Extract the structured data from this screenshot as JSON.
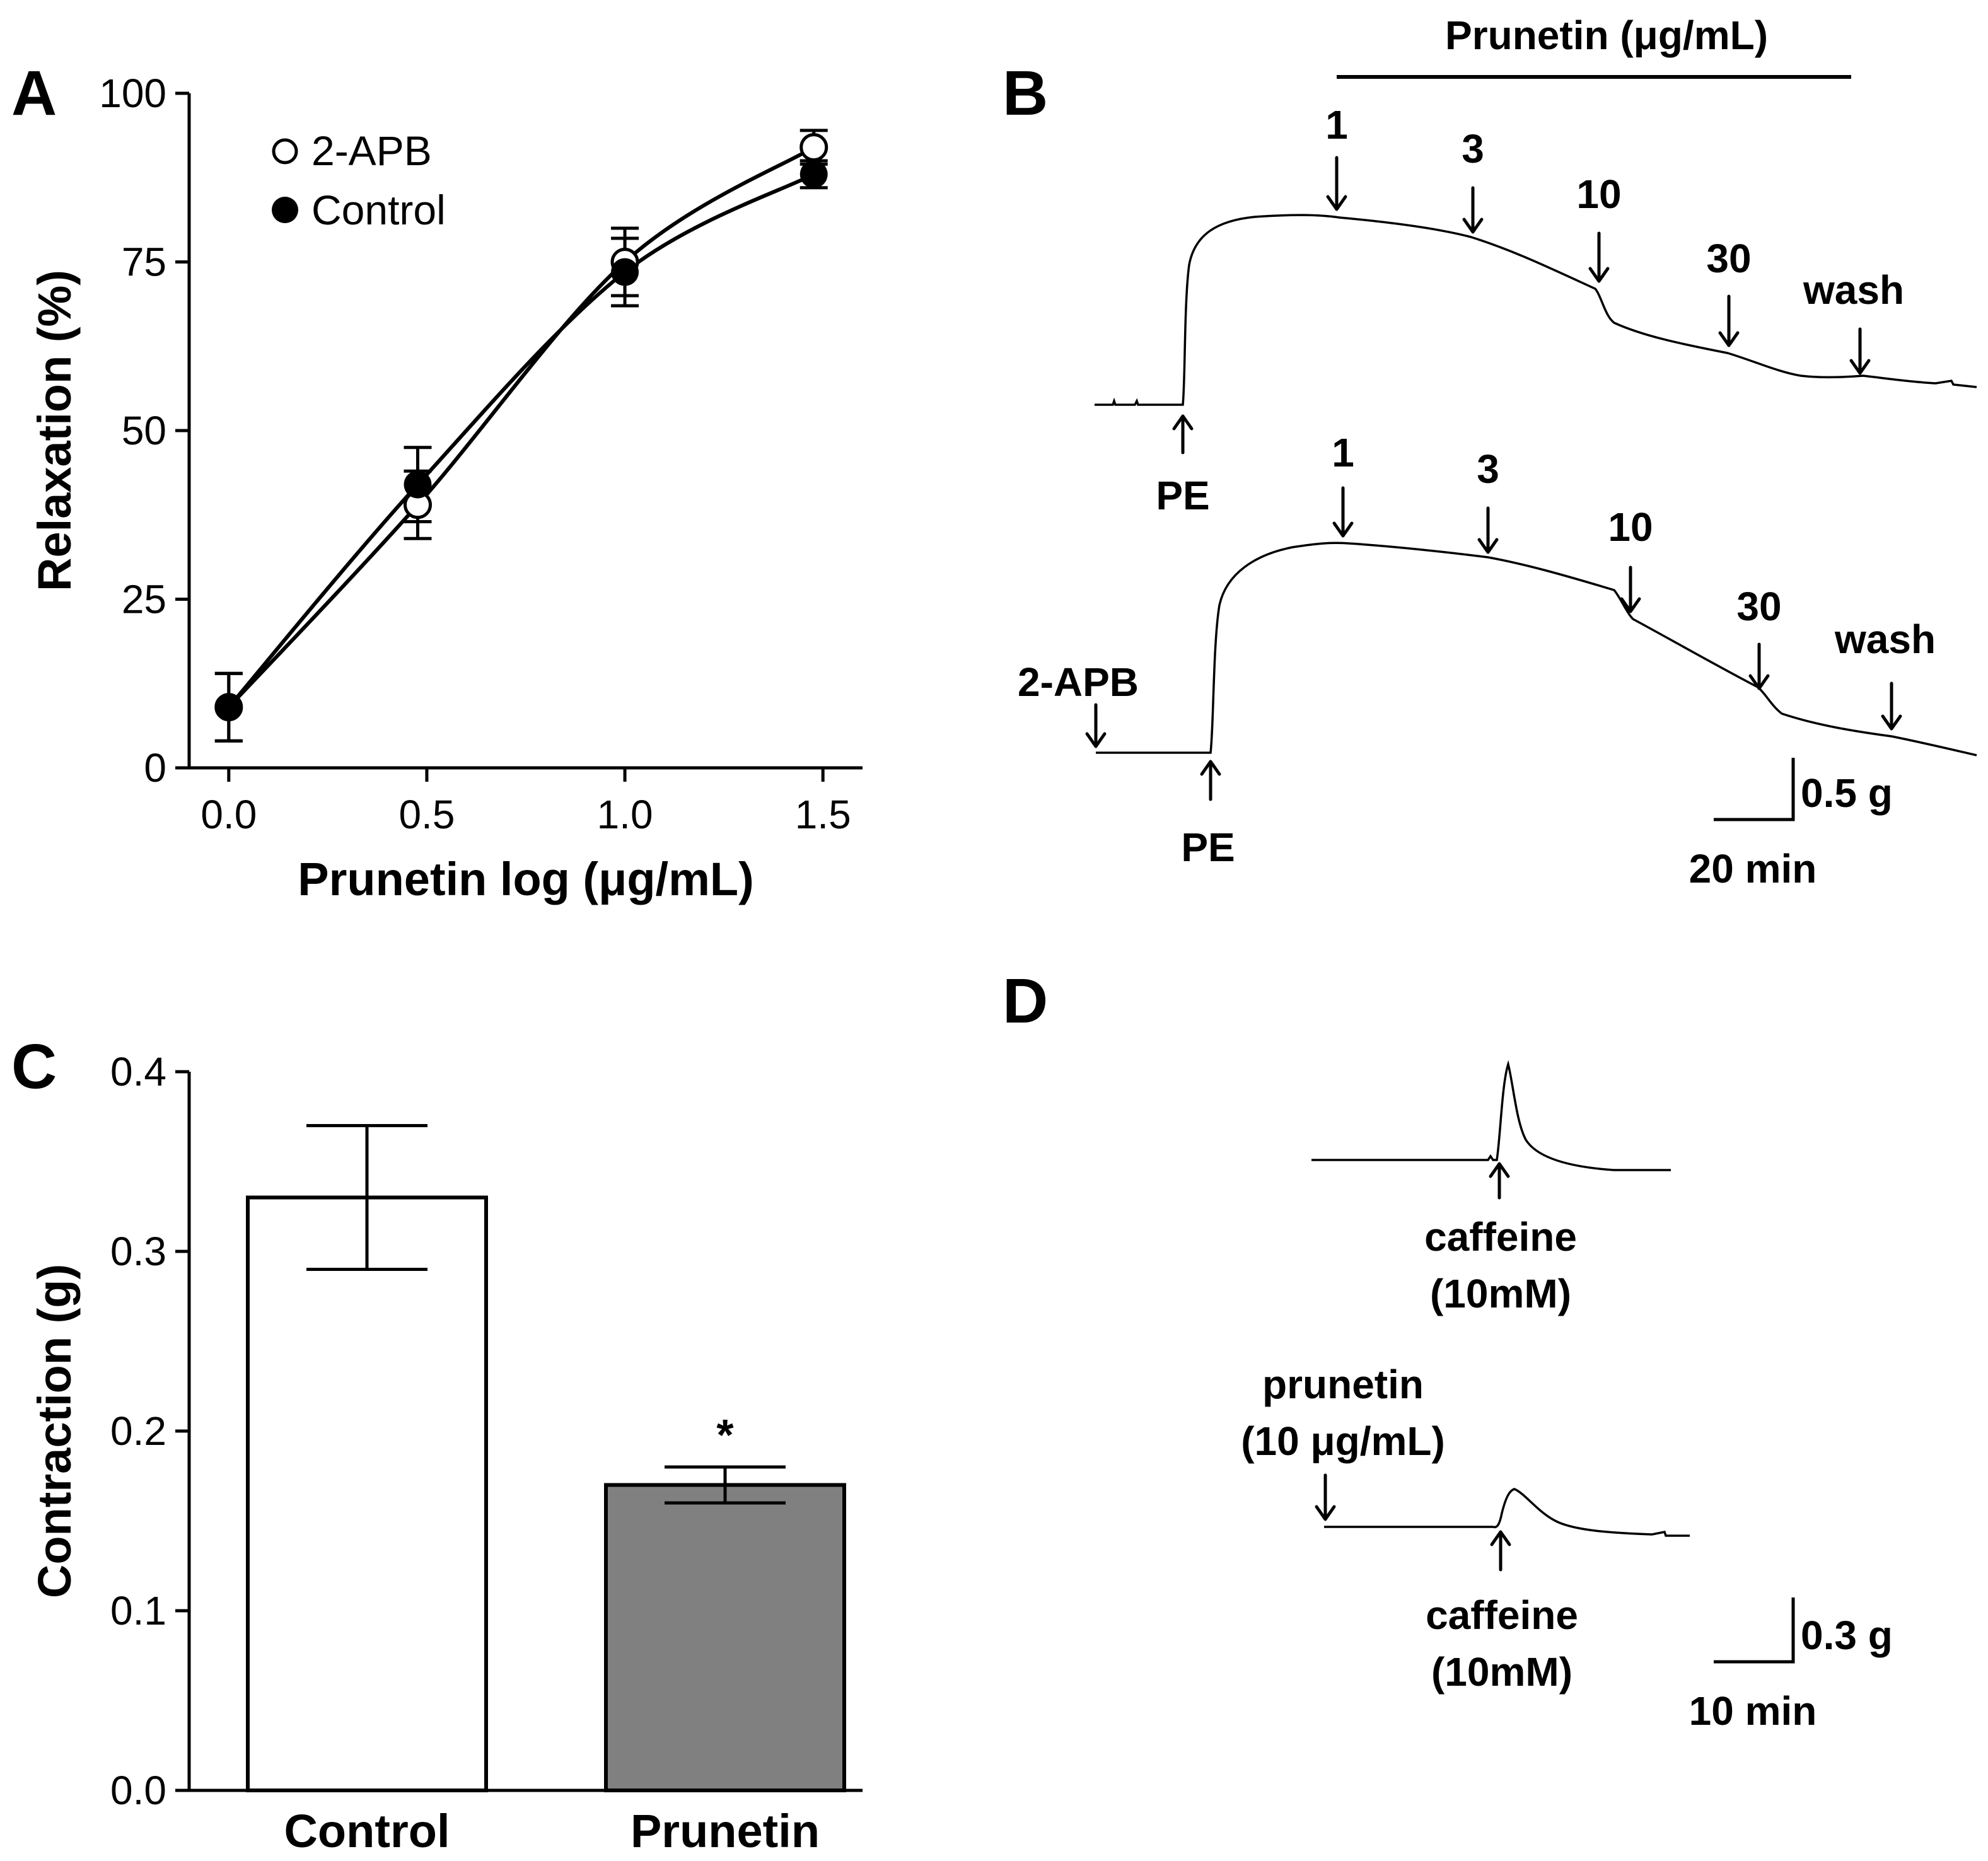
{
  "panels": {
    "a": "A",
    "b": "B",
    "c": "C",
    "d": "D"
  },
  "chart_data": [
    {
      "panel": "A",
      "type": "line",
      "xlabel": "Prunetin log (μg/mL)",
      "ylabel": "Relaxation (%)",
      "xlim": [
        -0.1,
        1.6
      ],
      "ylim": [
        0,
        100
      ],
      "xticks": [
        "0.0",
        "0.5",
        "1.0",
        "1.5"
      ],
      "yticks": [
        "0",
        "25",
        "50",
        "75",
        "100"
      ],
      "legend_placement": "top-left",
      "series": [
        {
          "name": "2-APB",
          "marker": "open-circle",
          "x": [
            0.0,
            0.477,
            1.0,
            1.477
          ],
          "values": [
            9,
            39,
            75,
            92
          ],
          "errors": [
            5,
            5,
            5,
            2.5
          ]
        },
        {
          "name": "Control",
          "marker": "filled-circle",
          "x": [
            0.0,
            0.477,
            1.0,
            1.477
          ],
          "values": [
            9,
            42,
            73.5,
            88
          ],
          "errors": [
            5,
            5.5,
            5,
            2
          ]
        }
      ]
    },
    {
      "panel": "C",
      "type": "bar",
      "categories": [
        "Control",
        "Prunetin"
      ],
      "values": [
        0.33,
        0.17
      ],
      "errors": [
        0.04,
        0.01
      ],
      "colors": [
        "#ffffff",
        "#808080"
      ],
      "ylabel": "Contraction (g)",
      "ylim": [
        0,
        0.4
      ],
      "yticks": [
        "0.0",
        "0.1",
        "0.2",
        "0.3",
        "0.4"
      ],
      "significance": "*"
    }
  ],
  "panel_b": {
    "bar_label": "Prunetin (μg/mL)",
    "top_trace": {
      "start_label": "PE",
      "concentrations": [
        "1",
        "3",
        "10",
        "30"
      ],
      "wash": "wash"
    },
    "bottom_trace": {
      "pretreat_label": "2-APB",
      "start_label": "PE",
      "concentrations": [
        "1",
        "3",
        "10",
        "30"
      ],
      "wash": "wash"
    },
    "scale": {
      "y": "0.5 g",
      "x": "20 min"
    }
  },
  "panel_d": {
    "top_trace": {
      "stim_line1": "caffeine",
      "stim_line2": "(10mM)"
    },
    "bottom_trace": {
      "pre_line1": "prunetin",
      "pre_line2": "(10 μg/mL)",
      "stim_line1": "caffeine",
      "stim_line2": "(10mM)"
    },
    "scale": {
      "y": "0.3 g",
      "x": "10 min"
    }
  }
}
